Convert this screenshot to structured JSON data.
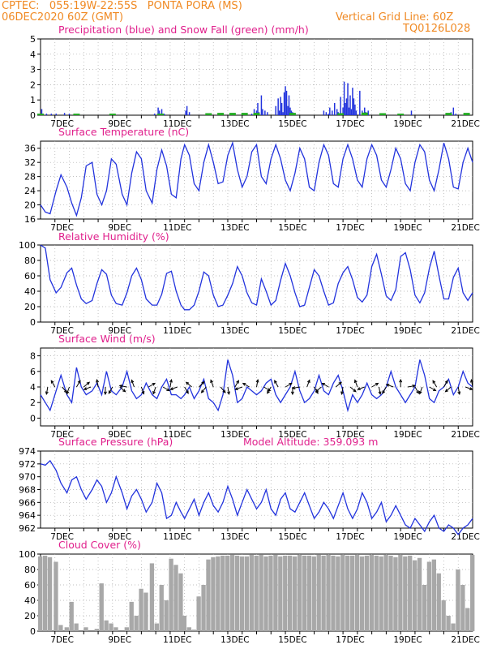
{
  "header": {
    "line1": "CPTEC:   055:19W-22:55S   PONTA PORA (MS)",
    "line2": "06DEC2020 60Z (GMT)",
    "grid_note": "Vertical Grid Line: 60Z",
    "code": "TQ0126L028"
  },
  "colors": {
    "header": "#f08a24",
    "title": "#e0208c",
    "line": "#2233dd",
    "precip": "#2233dd",
    "snow": "#22aa22",
    "cloud": "#a8a8a8",
    "arrow": "#000000"
  },
  "x_labels": [
    "7DEC",
    "9DEC",
    "11DEC",
    "13DEC",
    "15DEC",
    "17DEC",
    "19DEC",
    "21DEC"
  ],
  "chart_data": [
    {
      "id": "precipitation",
      "type": "bar",
      "title": "Precipitation (blue) and Snow Fall (green) (mm/h)",
      "x_unit": "hours since 06DEC2020 (1 DEC = 24h, 7DEC at 18h)",
      "ylim": [
        0,
        5
      ],
      "yticks": [
        0,
        1,
        2,
        3,
        4,
        5
      ],
      "rain": [
        [
          1,
          0.4
        ],
        [
          2,
          0.1
        ],
        [
          5,
          0.1
        ],
        [
          9,
          0.1
        ],
        [
          13,
          0.1
        ],
        [
          20,
          0.15
        ],
        [
          24,
          0.1
        ],
        [
          95,
          0.1
        ],
        [
          98,
          0.5
        ],
        [
          99,
          0.3
        ],
        [
          101,
          0.4
        ],
        [
          103,
          0.1
        ],
        [
          121,
          0.3
        ],
        [
          122,
          0.6
        ],
        [
          124,
          0.2
        ],
        [
          176,
          0.1
        ],
        [
          178,
          0.4
        ],
        [
          180,
          0.3
        ],
        [
          181,
          0.8
        ],
        [
          182,
          0.2
        ],
        [
          184,
          1.3
        ],
        [
          185,
          0.4
        ],
        [
          187,
          0.3
        ],
        [
          189,
          0.2
        ],
        [
          196,
          0.6
        ],
        [
          198,
          1.1
        ],
        [
          199,
          0.3
        ],
        [
          200,
          1.2
        ],
        [
          201,
          0.8
        ],
        [
          202,
          0.2
        ],
        [
          203,
          1.5
        ],
        [
          204,
          1.9
        ],
        [
          205,
          1.6
        ],
        [
          206,
          0.6
        ],
        [
          207,
          1.3
        ],
        [
          208,
          0.5
        ],
        [
          209,
          0.3
        ],
        [
          210,
          0.2
        ],
        [
          236,
          0.3
        ],
        [
          238,
          0.2
        ],
        [
          240,
          0.1
        ],
        [
          241,
          0.5
        ],
        [
          243,
          0.3
        ],
        [
          245,
          0.8
        ],
        [
          247,
          0.4
        ],
        [
          248,
          0.2
        ],
        [
          250,
          1.2
        ],
        [
          252,
          0.5
        ],
        [
          253,
          2.2
        ],
        [
          254,
          0.8
        ],
        [
          255,
          1.1
        ],
        [
          256,
          2.1
        ],
        [
          257,
          0.5
        ],
        [
          258,
          1.3
        ],
        [
          259,
          0.4
        ],
        [
          260,
          1.8
        ],
        [
          261,
          1.1
        ],
        [
          262,
          0.7
        ],
        [
          263,
          0.3
        ],
        [
          266,
          1.6
        ],
        [
          268,
          0.3
        ],
        [
          270,
          0.5
        ],
        [
          271,
          0.2
        ],
        [
          273,
          0.3
        ],
        [
          309,
          0.3
        ],
        [
          342,
          0.2
        ],
        [
          344,
          0.5
        ],
        [
          346,
          0.1
        ]
      ],
      "snow": [
        [
          0,
          0.05
        ],
        [
          30,
          0.05
        ],
        [
          60,
          0.05
        ],
        [
          100,
          0.05
        ],
        [
          140,
          0.08
        ],
        [
          150,
          0.1
        ],
        [
          160,
          0.1
        ],
        [
          170,
          0.1
        ],
        [
          180,
          0.1
        ],
        [
          210,
          0.1
        ],
        [
          250,
          0.08
        ],
        [
          270,
          0.12
        ],
        [
          285,
          0.08
        ],
        [
          300,
          0.05
        ],
        [
          340,
          0.1
        ],
        [
          355,
          0.1
        ]
      ]
    },
    {
      "id": "temperature",
      "type": "line",
      "title": "Surface Temperature (nC)",
      "ylim": [
        16,
        38
      ],
      "yticks": [
        16,
        20,
        24,
        28,
        32,
        36
      ],
      "x": [
        0,
        4,
        8,
        13,
        17,
        22,
        26,
        30,
        34,
        38,
        43,
        47,
        51,
        55,
        59,
        63,
        68,
        72,
        76,
        80,
        84,
        88,
        93,
        97,
        101,
        105,
        109,
        113,
        117,
        120,
        124,
        128,
        132,
        136,
        140,
        144,
        148,
        152,
        156,
        160,
        164,
        168,
        172,
        176,
        180,
        184,
        188,
        192,
        196,
        200,
        204,
        208,
        212,
        216,
        220,
        224,
        228,
        232,
        236,
        240,
        244,
        248,
        252,
        256,
        260,
        264,
        268,
        272,
        276,
        280,
        284,
        288,
        292,
        296,
        300,
        304,
        308,
        312,
        316,
        320,
        324,
        328,
        332,
        336,
        340,
        344,
        348,
        352,
        356,
        360
      ],
      "y": [
        20.0,
        18.0,
        17.5,
        24.0,
        28.5,
        25.0,
        20.5,
        17.0,
        22.0,
        31.0,
        32.0,
        23.0,
        20.0,
        24.0,
        33.0,
        31.5,
        23.0,
        20.0,
        29.0,
        35.0,
        33.0,
        24.0,
        20.5,
        30.0,
        35.5,
        31.0,
        23.0,
        22.0,
        33.0,
        37.0,
        34.0,
        26.0,
        24.0,
        32.0,
        37.0,
        32.0,
        26.0,
        26.5,
        34.0,
        37.5,
        30.0,
        25.0,
        28.0,
        35.0,
        37.0,
        28.0,
        26.0,
        33.0,
        37.0,
        33.0,
        27.0,
        24.0,
        29.0,
        36.0,
        33.0,
        25.0,
        24.0,
        32.0,
        37.0,
        34.0,
        26.0,
        25.0,
        33.0,
        37.0,
        33.0,
        27.0,
        25.0,
        33.0,
        37.0,
        34.0,
        27.0,
        25.0,
        30.0,
        36.0,
        33.0,
        26.0,
        24.0,
        32.0,
        37.0,
        35.0,
        27.0,
        24.0,
        30.0,
        37.5,
        33.0,
        25.0,
        24.5,
        32.0,
        36.0,
        32.0
      ]
    },
    {
      "id": "humidity",
      "type": "line",
      "title": "Relative Humidity (%)",
      "ylim": [
        0,
        100
      ],
      "yticks": [
        0,
        20,
        40,
        60,
        80,
        100
      ],
      "x": [
        0,
        4,
        8,
        13,
        17,
        22,
        26,
        30,
        34,
        38,
        43,
        47,
        51,
        55,
        59,
        63,
        68,
        72,
        76,
        80,
        84,
        88,
        93,
        97,
        101,
        105,
        109,
        113,
        117,
        120,
        124,
        128,
        132,
        136,
        140,
        144,
        148,
        152,
        156,
        160,
        164,
        168,
        172,
        176,
        180,
        184,
        188,
        192,
        196,
        200,
        204,
        208,
        212,
        216,
        220,
        224,
        228,
        232,
        236,
        240,
        244,
        248,
        252,
        256,
        260,
        264,
        268,
        272,
        276,
        280,
        284,
        288,
        292,
        296,
        300,
        304,
        308,
        312,
        316,
        320,
        324,
        328,
        332,
        336,
        340,
        344,
        348,
        352,
        356,
        360
      ],
      "y": [
        100,
        96,
        55,
        38,
        45,
        64,
        70,
        48,
        30,
        24,
        28,
        50,
        68,
        62,
        35,
        24,
        22,
        38,
        60,
        70,
        55,
        30,
        22,
        22,
        36,
        63,
        66,
        40,
        22,
        16,
        16,
        22,
        40,
        65,
        60,
        35,
        20,
        22,
        35,
        50,
        72,
        60,
        38,
        25,
        22,
        56,
        40,
        22,
        28,
        54,
        76,
        60,
        38,
        20,
        22,
        45,
        68,
        60,
        40,
        22,
        25,
        50,
        64,
        72,
        55,
        32,
        26,
        35,
        72,
        88,
        62,
        34,
        28,
        42,
        85,
        90,
        68,
        35,
        25,
        38,
        70,
        92,
        60,
        30,
        30,
        58,
        70,
        38,
        28,
        38
      ]
    },
    {
      "id": "wind",
      "type": "line",
      "title": "Surface Wind (m/s)",
      "ylim": [
        -1,
        9
      ],
      "yticks": [
        0,
        2,
        4,
        6,
        8
      ],
      "x": [
        0,
        4,
        8,
        13,
        17,
        22,
        26,
        30,
        34,
        38,
        43,
        47,
        51,
        55,
        59,
        63,
        68,
        72,
        76,
        80,
        84,
        88,
        93,
        97,
        101,
        105,
        109,
        113,
        117,
        120,
        124,
        128,
        132,
        136,
        140,
        144,
        148,
        152,
        156,
        160,
        164,
        168,
        172,
        176,
        180,
        184,
        188,
        192,
        196,
        200,
        204,
        208,
        212,
        216,
        220,
        224,
        228,
        232,
        236,
        240,
        244,
        248,
        252,
        256,
        260,
        264,
        268,
        272,
        276,
        280,
        284,
        288,
        292,
        296,
        300,
        304,
        308,
        312,
        316,
        320,
        324,
        328,
        332,
        336,
        340,
        344,
        348,
        352,
        356,
        360
      ],
      "y": [
        3.0,
        2.0,
        1.0,
        3.5,
        5.5,
        3.0,
        2.0,
        6.5,
        4.0,
        3.0,
        3.5,
        4.5,
        3.0,
        6.0,
        3.5,
        3.0,
        4.0,
        6.0,
        3.5,
        2.5,
        3.0,
        4.5,
        3.0,
        2.5,
        4.0,
        5.0,
        3.0,
        3.0,
        2.5,
        3.0,
        4.0,
        2.5,
        3.5,
        5.0,
        2.5,
        2.0,
        1.0,
        3.0,
        7.5,
        5.5,
        2.0,
        2.5,
        4.0,
        3.5,
        3.0,
        3.5,
        4.5,
        5.0,
        3.0,
        2.0,
        3.0,
        4.0,
        6.0,
        3.5,
        2.0,
        2.5,
        3.5,
        5.5,
        3.5,
        3.0,
        4.5,
        5.5,
        3.5,
        1.0,
        3.0,
        2.0,
        3.0,
        4.5,
        3.0,
        2.5,
        3.0,
        4.0,
        6.0,
        4.0,
        3.0,
        2.0,
        3.0,
        4.0,
        7.5,
        5.5,
        2.5,
        2.0,
        3.5,
        4.0,
        5.0,
        3.0,
        4.0,
        6.0,
        4.5,
        4.0
      ],
      "arrows_x": [
        6,
        12,
        18,
        24,
        30,
        36,
        42,
        48,
        54,
        60,
        66,
        72,
        78,
        84,
        90,
        96,
        102,
        108,
        114,
        120,
        126,
        132,
        138,
        144,
        150,
        156,
        162,
        168,
        174,
        180,
        186,
        192,
        198,
        204,
        210,
        216,
        222,
        228,
        234,
        240,
        246,
        252,
        258,
        264,
        270,
        276,
        282,
        288,
        294,
        300,
        306,
        312,
        318,
        324,
        330,
        336,
        342,
        348,
        354,
        360
      ],
      "arrows_angle": [
        260,
        120,
        310,
        250,
        60,
        40,
        200,
        100,
        270,
        240,
        320,
        170,
        110,
        290,
        30,
        250,
        330,
        80,
        200,
        300,
        140,
        45,
        230,
        110,
        310,
        280,
        60,
        200,
        150,
        80,
        330,
        240,
        120,
        30,
        270,
        190,
        70,
        300,
        220,
        150,
        40,
        260,
        320,
        110,
        200,
        30,
        280,
        240,
        160,
        90,
        10,
        300,
        250,
        330,
        120,
        60,
        220,
        280,
        340,
        100
      ]
    },
    {
      "id": "pressure",
      "type": "line",
      "title": "Surface Pressure (hPa)",
      "subtitle": "Model Altitude: 359.093 m",
      "ylim": [
        962,
        974
      ],
      "yticks": [
        962,
        964,
        966,
        968,
        970,
        972,
        974
      ],
      "x": [
        0,
        4,
        8,
        13,
        17,
        22,
        26,
        30,
        34,
        38,
        43,
        47,
        51,
        55,
        59,
        63,
        68,
        72,
        76,
        80,
        84,
        88,
        93,
        97,
        101,
        105,
        109,
        113,
        117,
        120,
        124,
        128,
        132,
        136,
        140,
        144,
        148,
        152,
        156,
        160,
        164,
        168,
        172,
        176,
        180,
        184,
        188,
        192,
        196,
        200,
        204,
        208,
        212,
        216,
        220,
        224,
        228,
        232,
        236,
        240,
        244,
        248,
        252,
        256,
        260,
        264,
        268,
        272,
        276,
        280,
        284,
        288,
        292,
        296,
        300,
        304,
        308,
        312,
        316,
        320,
        324,
        328,
        332,
        336,
        340,
        344,
        348,
        352,
        356,
        360
      ],
      "y": [
        972.0,
        971.8,
        972.5,
        971.0,
        969.0,
        967.5,
        969.5,
        970.0,
        968.0,
        966.5,
        968.0,
        969.5,
        968.5,
        966.0,
        967.5,
        970.0,
        967.5,
        965.0,
        967.0,
        968.0,
        966.5,
        964.5,
        966.0,
        969.0,
        967.5,
        963.5,
        964.0,
        966.0,
        964.5,
        963.5,
        965.0,
        966.5,
        964.0,
        966.0,
        967.5,
        965.5,
        964.5,
        966.0,
        968.5,
        966.5,
        964.0,
        966.0,
        968.0,
        966.5,
        965.0,
        966.0,
        968.0,
        965.0,
        964.0,
        966.5,
        967.5,
        965.0,
        964.5,
        966.0,
        967.5,
        965.5,
        963.5,
        964.5,
        966.0,
        965.0,
        963.5,
        965.5,
        967.5,
        965.0,
        963.5,
        965.0,
        967.5,
        966.0,
        963.5,
        964.5,
        966.0,
        963.0,
        964.0,
        965.5,
        964.0,
        962.5,
        962.0,
        963.5,
        962.5,
        961.5,
        963.0,
        964.0,
        962.0,
        961.5,
        962.5,
        962.0,
        961.0,
        962.0,
        962.5,
        963.5
      ]
    },
    {
      "id": "cloud",
      "type": "area",
      "title": "Cloud Cover (%)",
      "ylim": [
        0,
        100
      ],
      "yticks": [
        0,
        20,
        40,
        60,
        80,
        100
      ],
      "x": [
        0,
        4,
        8,
        13,
        17,
        22,
        26,
        30,
        34,
        38,
        43,
        47,
        51,
        55,
        59,
        63,
        68,
        72,
        76,
        80,
        84,
        88,
        93,
        97,
        101,
        105,
        109,
        113,
        117,
        120,
        124,
        128,
        132,
        136,
        140,
        144,
        148,
        152,
        156,
        160,
        164,
        168,
        172,
        176,
        180,
        184,
        188,
        192,
        196,
        200,
        204,
        208,
        212,
        216,
        220,
        224,
        228,
        232,
        236,
        240,
        244,
        248,
        252,
        256,
        260,
        264,
        268,
        272,
        276,
        280,
        284,
        288,
        292,
        296,
        300,
        304,
        308,
        312,
        316,
        320,
        324,
        328,
        332,
        336,
        340,
        344,
        348,
        352,
        356,
        360
      ],
      "y": [
        97,
        98,
        96,
        90,
        8,
        5,
        38,
        10,
        0,
        5,
        0,
        3,
        62,
        14,
        10,
        5,
        0,
        5,
        38,
        20,
        55,
        50,
        88,
        10,
        60,
        40,
        94,
        86,
        75,
        20,
        5,
        2,
        45,
        60,
        93,
        96,
        97,
        98,
        98,
        99,
        98,
        97,
        97,
        99,
        98,
        99,
        97,
        98,
        99,
        97,
        98,
        98,
        97,
        99,
        98,
        98,
        97,
        99,
        98,
        99,
        98,
        97,
        99,
        98,
        98,
        99,
        97,
        98,
        99,
        98,
        97,
        99,
        98,
        96,
        99,
        97,
        98,
        92,
        95,
        60,
        90,
        93,
        75,
        40,
        20,
        10,
        80,
        60,
        30,
        99
      ]
    }
  ]
}
